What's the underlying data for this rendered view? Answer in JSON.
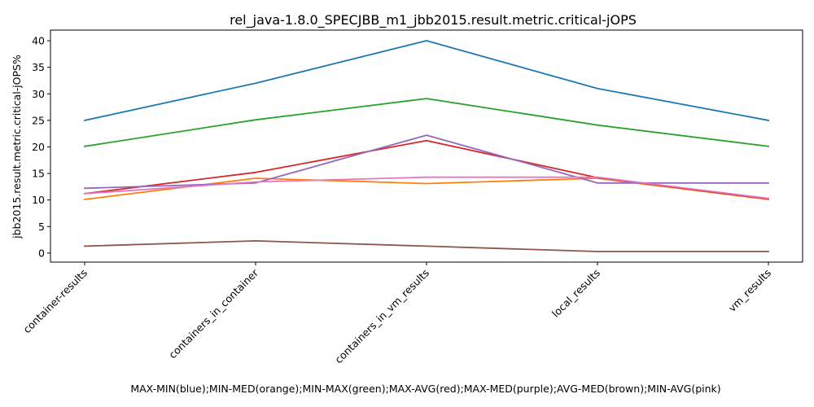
{
  "chart_data": {
    "type": "line",
    "title": "rel_java-1.8.0_SPECJBB_m1_jbb2015.result.metric.critical-jOPS",
    "xlabel": "MAX-MIN(blue);MIN-MED(orange);MIN-MAX(green);MAX-AVG(red);MAX-MED(purple);AVG-MED(brown);MIN-AVG(pink)",
    "ylabel": "jbb2015.result.metric.critical-jOPS%",
    "categories": [
      "container-results",
      "containers_in_container",
      "containers_in_vm_results",
      "local_results",
      "vm_results"
    ],
    "ylim": [
      -1.7,
      42
    ],
    "yticks": [
      0,
      5,
      10,
      15,
      20,
      25,
      30,
      35,
      40
    ],
    "grid": false,
    "legend": "none",
    "series": [
      {
        "color": "#1f77b4",
        "values": [
          25.0,
          32.0,
          40.0,
          31.0,
          25.0
        ]
      },
      {
        "color": "#ff7f0e",
        "values": [
          10.1,
          14.1,
          13.1,
          14.1,
          10.1
        ]
      },
      {
        "color": "#2ca02c",
        "values": [
          20.1,
          25.1,
          29.1,
          24.1,
          20.1
        ]
      },
      {
        "color": "#d62728",
        "values": [
          11.2,
          15.2,
          21.2,
          14.2,
          10.2
        ]
      },
      {
        "color": "#9467bd",
        "values": [
          12.2,
          13.2,
          22.2,
          13.2,
          13.2
        ]
      },
      {
        "color": "#8c564b",
        "values": [
          1.3,
          2.3,
          1.3,
          0.3,
          0.3
        ]
      },
      {
        "color": "#e377c2",
        "values": [
          11.2,
          13.4,
          14.3,
          14.3,
          10.3
        ]
      }
    ]
  }
}
